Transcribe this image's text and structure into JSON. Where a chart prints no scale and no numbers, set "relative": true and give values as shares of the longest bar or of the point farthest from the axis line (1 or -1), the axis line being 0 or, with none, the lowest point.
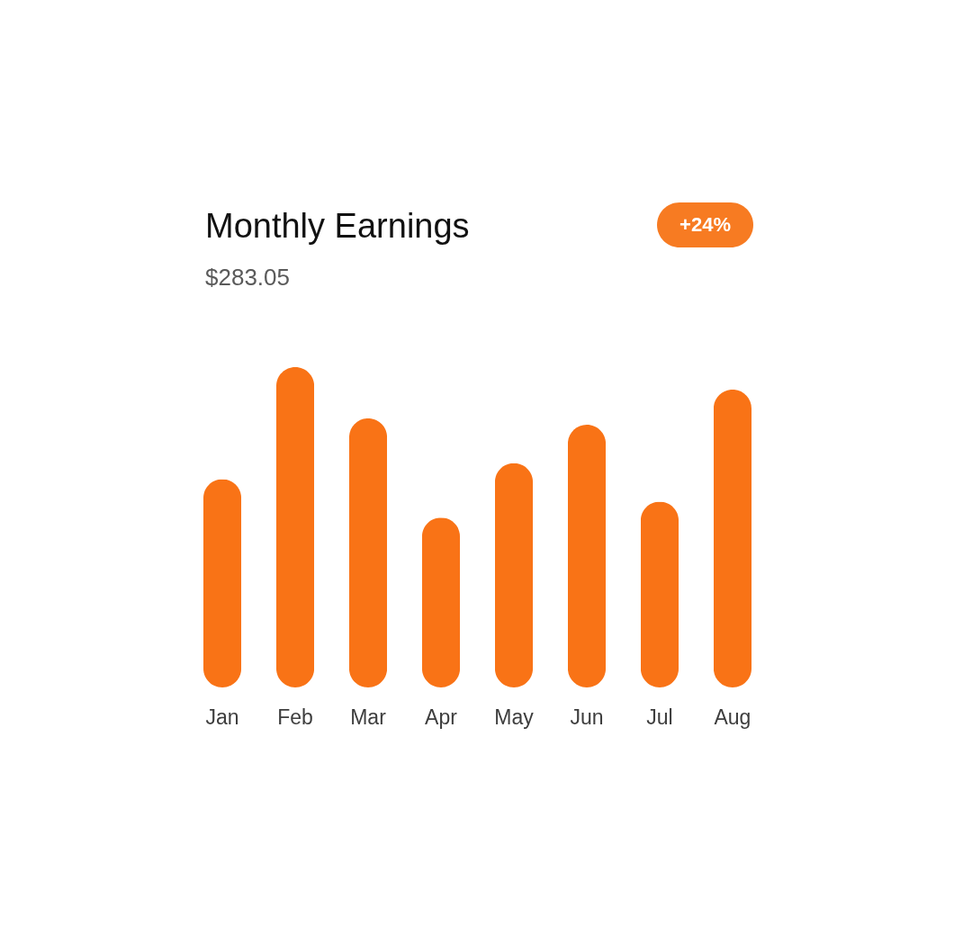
{
  "chart_data": {
    "type": "bar",
    "title": "Monthly Earnings",
    "subtitle": "$283.05",
    "annotations": [
      "+24%"
    ],
    "categories": [
      "Jan",
      "Feb",
      "Mar",
      "Apr",
      "May",
      "Jun",
      "Jul",
      "Aug"
    ],
    "values": [
      0.65,
      1,
      0.84,
      0.53,
      0.7,
      0.82,
      0.58,
      0.93
    ],
    "color": "#f97316",
    "relative": true
  }
}
